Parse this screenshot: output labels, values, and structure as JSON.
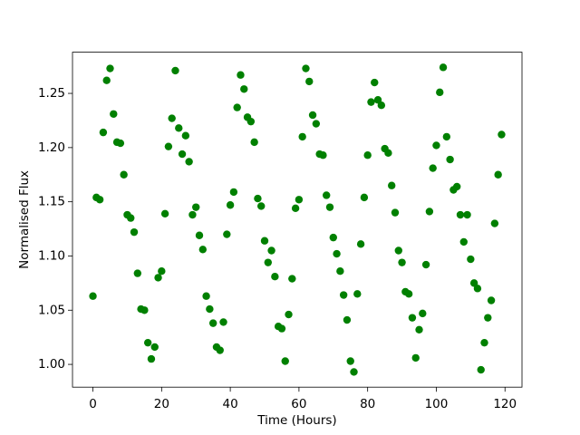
{
  "chart_data": {
    "type": "scatter",
    "xlabel": "Time (Hours)",
    "ylabel": "Normalised Flux",
    "color": "#008000",
    "x": [
      0,
      1,
      2,
      3,
      4,
      5,
      6,
      7,
      8,
      9,
      10,
      11,
      12,
      13,
      14,
      15,
      16,
      17,
      18,
      19,
      20,
      21,
      22,
      23,
      24,
      25,
      26,
      27,
      28,
      29,
      30,
      31,
      32,
      33,
      34,
      35,
      36,
      37,
      38,
      39,
      40,
      41,
      42,
      43,
      44,
      45,
      46,
      47,
      48,
      49,
      50,
      51,
      52,
      53,
      54,
      55,
      56,
      57,
      58,
      59,
      60,
      61,
      62,
      63,
      64,
      65,
      66,
      67,
      68,
      69,
      70,
      71,
      72,
      73,
      74,
      75,
      76,
      77,
      78,
      79,
      80,
      81,
      82,
      83,
      84,
      85,
      86,
      87,
      88,
      89,
      90,
      91,
      92,
      93,
      94,
      95,
      96,
      97,
      98,
      99,
      100,
      101,
      102,
      103,
      104,
      105,
      106,
      107,
      108,
      109,
      110,
      111,
      112,
      113,
      114,
      115,
      116,
      117,
      118,
      119
    ],
    "values": [
      1.063,
      1.154,
      1.152,
      1.214,
      1.262,
      1.273,
      1.231,
      1.205,
      1.204,
      1.175,
      1.138,
      1.135,
      1.122,
      1.084,
      1.051,
      1.05,
      1.02,
      1.005,
      1.016,
      1.08,
      1.086,
      1.139,
      1.201,
      1.227,
      1.271,
      1.218,
      1.194,
      1.211,
      1.187,
      1.138,
      1.145,
      1.119,
      1.106,
      1.063,
      1.051,
      1.038,
      1.016,
      1.013,
      1.039,
      1.12,
      1.147,
      1.159,
      1.237,
      1.267,
      1.254,
      1.228,
      1.224,
      1.205,
      1.153,
      1.146,
      1.114,
      1.094,
      1.105,
      1.081,
      1.035,
      1.033,
      1.003,
      1.046,
      1.079,
      1.144,
      1.152,
      1.21,
      1.273,
      1.261,
      1.23,
      1.222,
      1.194,
      1.193,
      1.156,
      1.145,
      1.117,
      1.102,
      1.086,
      1.064,
      1.041,
      1.003,
      0.993,
      1.065,
      1.111,
      1.154,
      1.193,
      1.242,
      1.26,
      1.244,
      1.239,
      1.199,
      1.195,
      1.165,
      1.14,
      1.105,
      1.094,
      1.067,
      1.065,
      1.043,
      1.006,
      1.032,
      1.047,
      1.092,
      1.141,
      1.181,
      1.202,
      1.251,
      1.274,
      1.21,
      1.189,
      1.161,
      1.164,
      1.138,
      1.113,
      1.138,
      1.097,
      1.075,
      1.07,
      0.995,
      1.02,
      1.043,
      1.059,
      1.13,
      1.175,
      1.212
    ],
    "xlim": [
      -5.95,
      124.95
    ],
    "xticks": [
      0,
      20,
      40,
      60,
      80,
      100,
      120
    ],
    "ylim": [
      0.979,
      1.288
    ],
    "yticks": [
      {
        "value": 1.0,
        "label": "1.00"
      },
      1.05,
      {
        "value": 1.1,
        "label": "1.10"
      },
      1.15,
      {
        "value": 1.2,
        "label": "1.20"
      },
      1.25
    ]
  }
}
